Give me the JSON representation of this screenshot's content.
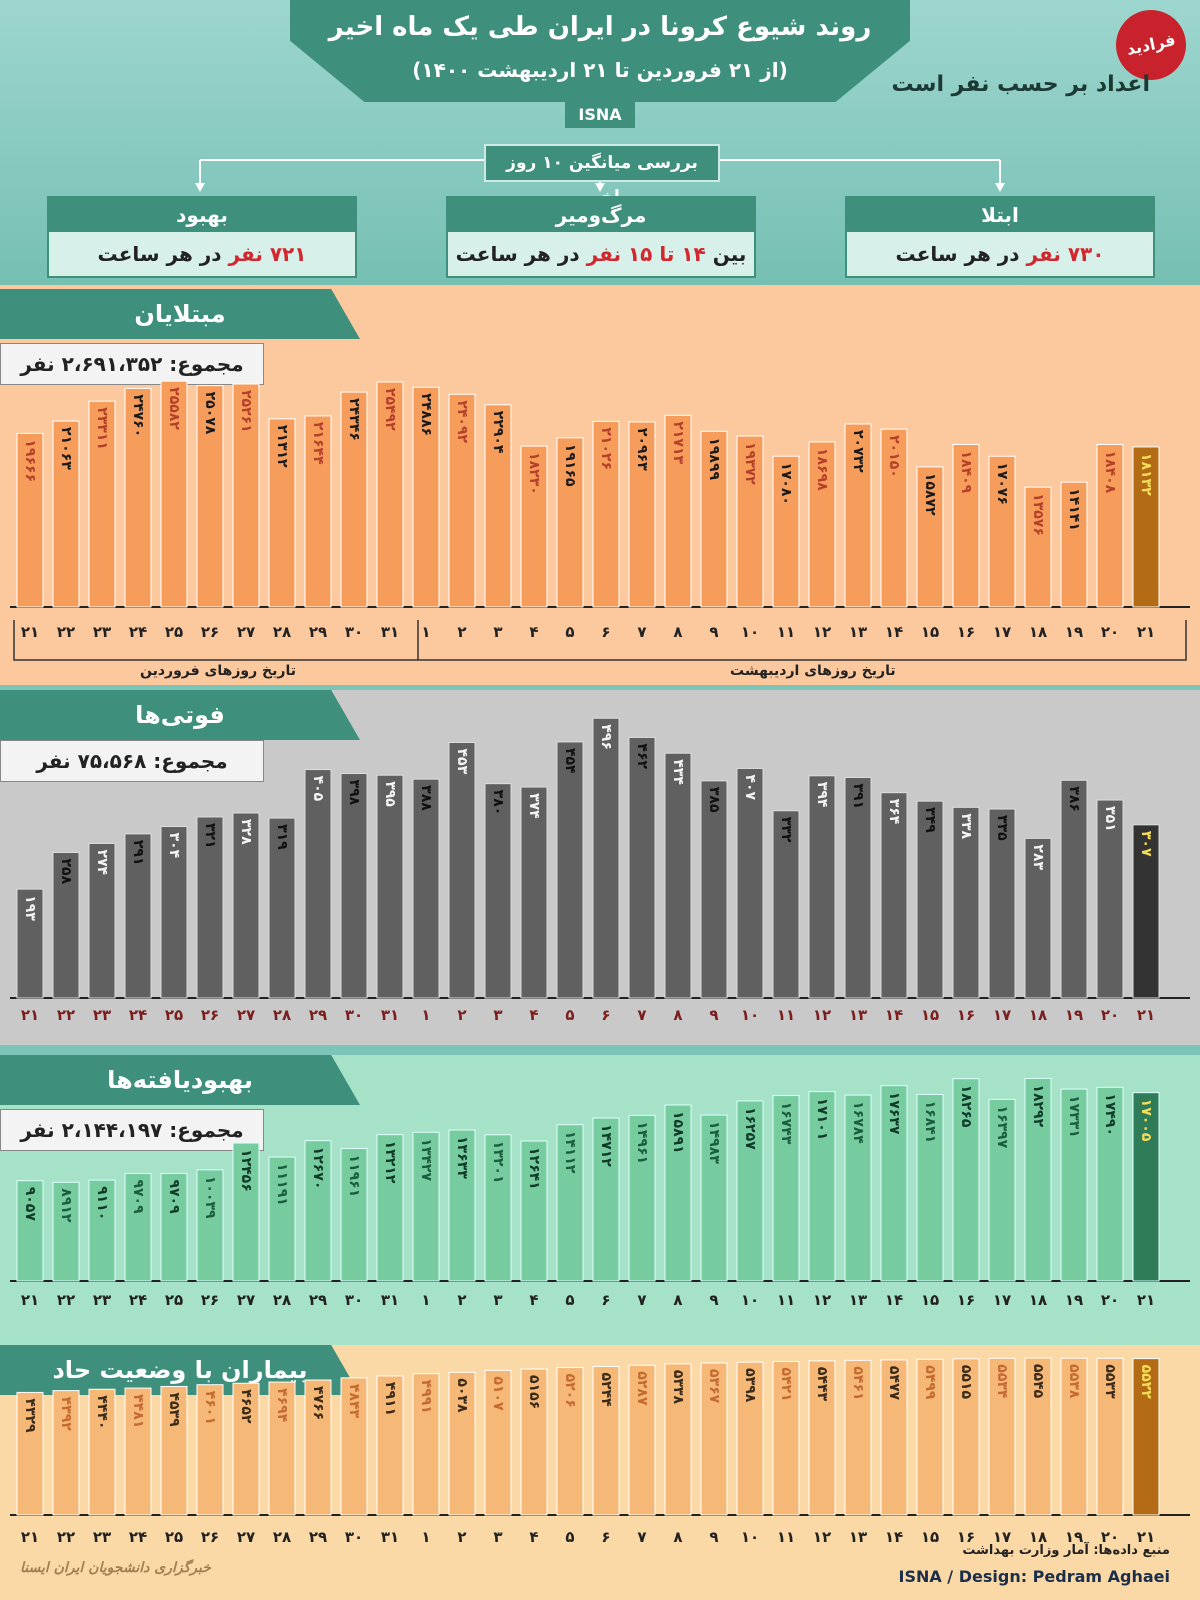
{
  "header": {
    "title": "روند شیوع کرونا در ایران طی یک ماه اخیر",
    "subtitle": "(از ۲۱ فروردین تا ۲۱ اردیبهشت ۱۴۰۰)",
    "source_tag": "ISNA",
    "logo_text": "فرادید",
    "units_note": "اعداد بر حسب نفر است",
    "average_label": "بررسی میانگین ۱۰ روز اخیر"
  },
  "cards": [
    {
      "title": "بهبود",
      "value": "۷۲۱ نفر",
      "suffix": " در هر ساعت",
      "prefix": ""
    },
    {
      "title": "مرگ‌ومیر",
      "prefix": "بین ",
      "value": "۱۴ تا ۱۵ نفر",
      "suffix": " در هر ساعت"
    },
    {
      "title": "ابتلا",
      "value": "۷۳۰ نفر",
      "suffix": " در هر ساعت",
      "prefix": ""
    }
  ],
  "axis_notes": {
    "farvardin": "تاریخ روزهای فروردین",
    "ordibehesht": "تاریخ روزهای اردیبهشت"
  },
  "footer": {
    "source": "منبع داده‌ها: آمار وزارت بهداشت",
    "design": "ISNA / Design: Pedram Aghaei",
    "watermark": "خبرگزاری دانشجویان ایران ایسنا"
  },
  "colors": {
    "teal": "#3e8f7c",
    "orange_bar": "#f79d5c",
    "gray_bar": "#606060",
    "green_bar": "#76cc9f",
    "cream_bar": "#f5b877",
    "highlight_bar": "#b36b15"
  },
  "chart_data": [
    {
      "type": "bar",
      "title": "مبتلایان",
      "total": "مجموع: ۲،۶۹۱،۳۵۲ نفر",
      "categories": [
        "۲۱",
        "۲۲",
        "۲۳",
        "۲۴",
        "۲۵",
        "۲۶",
        "۲۷",
        "۲۸",
        "۲۹",
        "۳۰",
        "۳۱",
        "۱",
        "۲",
        "۳",
        "۴",
        "۵",
        "۶",
        "۷",
        "۸",
        "۹",
        "۱۰",
        "۱۱",
        "۱۲",
        "۱۳",
        "۱۴",
        "۱۵",
        "۱۶",
        "۱۷",
        "۱۸",
        "۱۹",
        "۲۰",
        "۲۱"
      ],
      "values": [
        19666,
        21063,
        23311,
        24760,
        25582,
        25078,
        25261,
        21312,
        21644,
        24346,
        25492,
        24886,
        24092,
        22904,
        18230,
        19165,
        21026,
        20963,
        21713,
        19899,
        19372,
        17080,
        18698,
        20732,
        20150,
        15872,
        18409,
        17076,
        13576,
        14141,
        18408,
        18132
      ],
      "labels": [
        "۱۹۶۶۶",
        "۲۱۰۶۳",
        "۲۳۳۱۱",
        "۲۴۷۶۰",
        "۲۵۵۸۲",
        "۲۵۰۷۸",
        "۲۵۲۶۱",
        "۲۱۳۱۲",
        "۲۱۶۴۴",
        "۲۴۳۴۶",
        "۲۵۴۹۲",
        "۲۴۸۸۶",
        "۲۴۰۹۲",
        "۲۲۹۰۴",
        "۱۸۲۳۰",
        "۱۹۱۶۵",
        "۲۱۰۲۶",
        "۲۰۹۶۳",
        "۲۱۷۱۳",
        "۱۹۸۹۹",
        "۱۹۳۷۲",
        "۱۷۰۸۰",
        "۱۸۶۹۸",
        "۲۰۷۳۲",
        "۲۰۱۵۰",
        "۱۵۸۷۲",
        "۱۸۴۰۹",
        "۱۷۰۷۶",
        "۱۳۵۷۶",
        "۱۴۱۴۱",
        "۱۸۴۰۸",
        "۱۸۱۳۲"
      ],
      "ylim": [
        0,
        25600
      ]
    },
    {
      "type": "bar",
      "title": "فوتی‌ها",
      "total": "مجموع: ۷۵،۵۶۸ نفر",
      "categories": [
        "۲۱",
        "۲۲",
        "۲۳",
        "۲۴",
        "۲۵",
        "۲۶",
        "۲۷",
        "۲۸",
        "۲۹",
        "۳۰",
        "۳۱",
        "۱",
        "۲",
        "۳",
        "۴",
        "۵",
        "۶",
        "۷",
        "۸",
        "۹",
        "۱۰",
        "۱۱",
        "۱۲",
        "۱۳",
        "۱۴",
        "۱۵",
        "۱۶",
        "۱۷",
        "۱۸",
        "۱۹",
        "۲۰",
        "۲۱"
      ],
      "values": [
        193,
        258,
        274,
        291,
        304,
        321,
        328,
        319,
        405,
        398,
        395,
        388,
        453,
        380,
        374,
        454,
        496,
        462,
        434,
        385,
        407,
        332,
        394,
        391,
        364,
        349,
        338,
        335,
        283,
        386,
        351,
        307
      ],
      "labels": [
        "۱۹۳",
        "۲۵۸",
        "۲۷۴",
        "۲۹۱",
        "۳۰۴",
        "۳۲۱",
        "۳۲۸",
        "۳۱۹",
        "۴۰۵",
        "۳۹۸",
        "۳۹۵",
        "۳۸۸",
        "۴۵۳",
        "۳۸۰",
        "۳۷۴",
        "۴۵۴",
        "۴۹۶",
        "۴۶۲",
        "۴۳۴",
        "۳۸۵",
        "۴۰۷",
        "۳۳۲",
        "۳۹۴",
        "۳۹۱",
        "۳۶۴",
        "۳۴۹",
        "۳۳۸",
        "۳۳۵",
        "۲۸۳",
        "۳۸۶",
        "۳۵۱",
        "۳۰۷"
      ],
      "ylim": [
        0,
        500
      ]
    },
    {
      "type": "bar",
      "title": "بهبودیافته‌ها",
      "total": "مجموع: ۲،۱۴۴،۱۹۷ نفر",
      "categories": [
        "۲۱",
        "۲۲",
        "۲۳",
        "۲۴",
        "۲۵",
        "۲۶",
        "۲۷",
        "۲۸",
        "۲۹",
        "۳۰",
        "۳۱",
        "۱",
        "۲",
        "۳",
        "۴",
        "۵",
        "۶",
        "۷",
        "۸",
        "۹",
        "۱۰",
        "۱۱",
        "۱۲",
        "۱۳",
        "۱۴",
        "۱۵",
        "۱۶",
        "۱۷",
        "۱۸",
        "۱۹",
        "۲۰",
        "۲۱"
      ],
      "values": [
        9057,
        8912,
        9110,
        9709,
        9709,
        10039,
        12456,
        11191,
        12670,
        11961,
        13212,
        13427,
        13633,
        13201,
        12641,
        14112,
        14712,
        14961,
        15891,
        14983,
        16257,
        16743,
        17101,
        16784,
        17637,
        16841,
        18265,
        16397,
        18292,
        17331,
        17490,
        17005
      ],
      "labels": [
        "۹۰۵۷",
        "۸۹۱۲",
        "۹۱۱۰",
        "۹۷۰۹",
        "۹۷۰۹",
        "۱۰۰۳۹",
        "۱۲۴۵۶",
        "۱۱۱۹۱",
        "۱۲۶۷۰",
        "۱۱۹۶۱",
        "۱۳۲۱۲",
        "۱۳۴۲۷",
        "۱۳۶۳۳",
        "۱۳۲۰۱",
        "۱۲۶۴۱",
        "۱۴۱۱۲",
        "۱۴۷۱۲",
        "۱۴۹۶۱",
        "۱۵۸۹۱",
        "۱۴۹۸۳",
        "۱۶۲۵۷",
        "۱۶۷۴۳",
        "۱۷۱۰۱",
        "۱۶۷۸۴",
        "۱۷۶۳۷",
        "۱۶۸۴۱",
        "۱۸۲۶۵",
        "۱۶۳۹۷",
        "۱۸۲۹۲",
        "۱۷۳۳۱",
        "۱۷۴۹۰",
        "۱۷۰۰۵"
      ],
      "ylim": [
        0,
        18600
      ]
    },
    {
      "type": "bar",
      "title": "بیماران با وضعیت حاد",
      "total": "",
      "categories": [
        "۲۱",
        "۲۲",
        "۲۳",
        "۲۴",
        "۲۵",
        "۲۶",
        "۲۷",
        "۲۸",
        "۲۹",
        "۳۰",
        "۳۱",
        "۱",
        "۲",
        "۳",
        "۴",
        "۵",
        "۶",
        "۷",
        "۸",
        "۹",
        "۱۰",
        "۱۱",
        "۱۲",
        "۱۳",
        "۱۴",
        "۱۵",
        "۱۶",
        "۱۷",
        "۱۸",
        "۱۹",
        "۲۰",
        "۲۱"
      ],
      "values": [
        4329,
        4392,
        4440,
        4481,
        4539,
        4601,
        4652,
        4694,
        4766,
        4843,
        4911,
        4991,
        5038,
        5107,
        5156,
        5206,
        5244,
        5287,
        5338,
        5367,
        5398,
        5421,
        5443,
        5461,
        5477,
        5499,
        5515,
        5534,
        5545,
        5538,
        5533,
        5522
      ],
      "labels": [
        "۴۳۲۹",
        "۴۳۹۲",
        "۴۴۴۰",
        "۴۴۸۱",
        "۴۵۳۹",
        "۴۶۰۱",
        "۴۶۵۲",
        "۴۶۹۴",
        "۴۷۶۶",
        "۴۸۴۳",
        "۴۹۱۱",
        "۴۹۹۱",
        "۵۰۳۸",
        "۵۱۰۷",
        "۵۱۵۶",
        "۵۲۰۶",
        "۵۲۴۴",
        "۵۲۸۷",
        "۵۳۳۸",
        "۵۳۶۷",
        "۵۳۹۸",
        "۵۴۲۱",
        "۵۴۴۳",
        "۵۴۶۱",
        "۵۴۷۷",
        "۵۴۹۹",
        "۵۵۱۵",
        "۵۵۳۴",
        "۵۵۴۵",
        "۵۵۳۸",
        "۵۵۳۳",
        "۵۵۲۲"
      ],
      "ylim": [
        0,
        5650
      ]
    }
  ]
}
